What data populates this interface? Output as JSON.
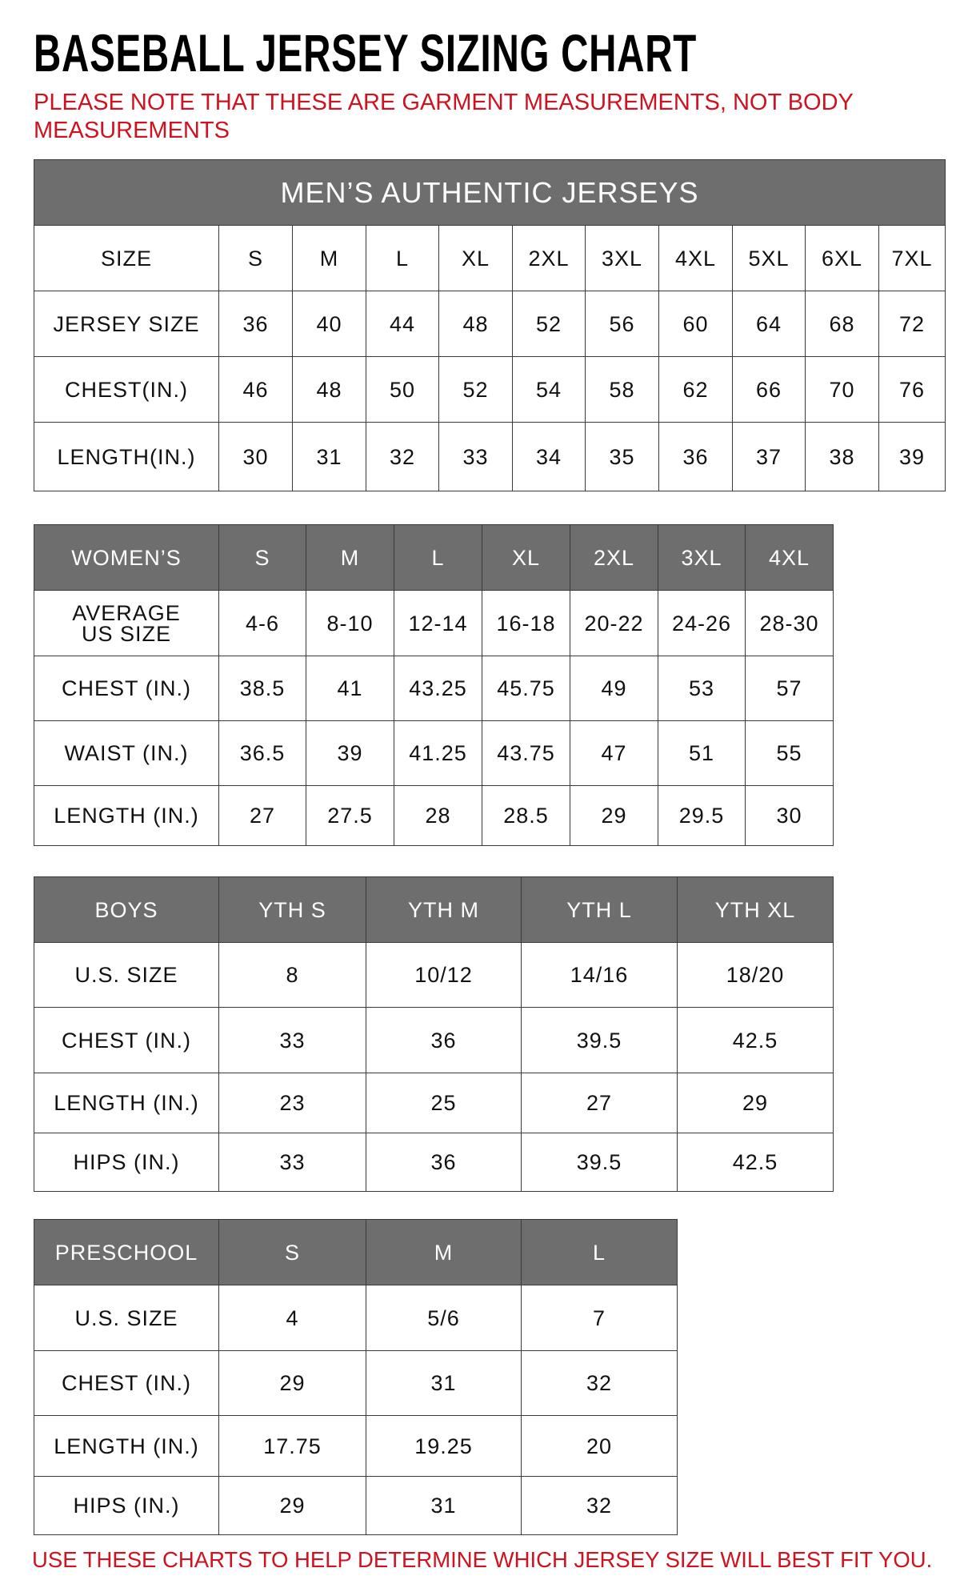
{
  "title": "BASEBALL JERSEY SIZING CHART",
  "note": "PLEASE NOTE THAT THESE ARE GARMENT MEASUREMENTS, NOT BODY MEASUREMENTS",
  "footer": "USE THESE CHARTS TO HELP DETERMINE WHICH JERSEY SIZE WILL BEST FIT YOU.",
  "colors": {
    "header_bg": "#6e6e6e",
    "note_red": "#d0111f"
  },
  "men": {
    "banner": "MEN’S AUTHENTIC JERSEYS",
    "header": [
      "SIZE",
      "S",
      "M",
      "L",
      "XL",
      "2XL",
      "3XL",
      "4XL",
      "5XL",
      "6XL",
      "7XL"
    ],
    "rows": [
      [
        "JERSEY SIZE",
        "36",
        "40",
        "44",
        "48",
        "52",
        "56",
        "60",
        "64",
        "68",
        "72"
      ],
      [
        "CHEST(IN.)",
        "46",
        "48",
        "50",
        "52",
        "54",
        "58",
        "62",
        "66",
        "70",
        "76"
      ],
      [
        "LENGTH(IN.)",
        "30",
        "31",
        "32",
        "33",
        "34",
        "35",
        "36",
        "37",
        "38",
        "39"
      ]
    ]
  },
  "women": {
    "header": [
      "WOMEN’S",
      "S",
      "M",
      "L",
      "XL",
      "2XL",
      "3XL",
      "4XL"
    ],
    "rows": [
      [
        "AVERAGE US SIZE",
        "4-6",
        "8-10",
        "12-14",
        "16-18",
        "20-22",
        "24-26",
        "28-30"
      ],
      [
        "CHEST (IN.)",
        "38.5",
        "41",
        "43.25",
        "45.75",
        "49",
        "53",
        "57"
      ],
      [
        "WAIST (IN.)",
        "36.5",
        "39",
        "41.25",
        "43.75",
        "47",
        "51",
        "55"
      ],
      [
        "LENGTH (IN.)",
        "27",
        "27.5",
        "28",
        "28.5",
        "29",
        "29.5",
        "30"
      ]
    ]
  },
  "boys": {
    "header": [
      "BOYS",
      "YTH S",
      "YTH M",
      "YTH L",
      "YTH XL"
    ],
    "rows": [
      [
        "U.S. SIZE",
        "8",
        "10/12",
        "14/16",
        "18/20"
      ],
      [
        "CHEST (IN.)",
        "33",
        "36",
        "39.5",
        "42.5"
      ],
      [
        "LENGTH (IN.)",
        "23",
        "25",
        "27",
        "29"
      ],
      [
        "HIPS (IN.)",
        "33",
        "36",
        "39.5",
        "42.5"
      ]
    ]
  },
  "preschool": {
    "header": [
      "PRESCHOOL",
      "S",
      "M",
      "L"
    ],
    "rows": [
      [
        "U.S. SIZE",
        "4",
        "5/6",
        "7"
      ],
      [
        "CHEST (IN.)",
        "29",
        "31",
        "32"
      ],
      [
        "LENGTH (IN.)",
        "17.75",
        "19.25",
        "20"
      ],
      [
        "HIPS (IN.)",
        "29",
        "31",
        "32"
      ]
    ]
  }
}
